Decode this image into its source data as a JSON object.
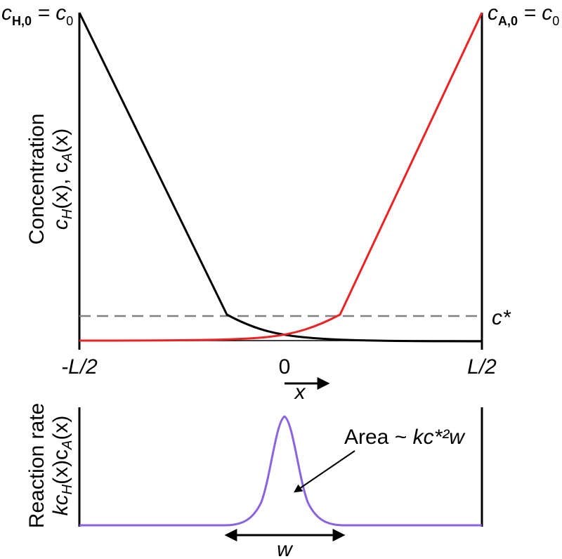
{
  "top_left_label": {
    "var": "c",
    "sub": "H,0",
    "rest": " = c",
    "sub2": "0"
  },
  "top_right_label": {
    "var": "c",
    "sub": "A,0",
    "rest": " = c",
    "sub2": "0"
  },
  "c_star_label": "c*",
  "y_axis_top": {
    "line1": "Concentration",
    "line2": {
      "a": "c",
      "a_sub": "H",
      "b": "(x), c",
      "b_sub": "A",
      "c": "(x)"
    }
  },
  "x_ticks": {
    "left": "-L/2",
    "mid": "0",
    "right": "L/2"
  },
  "x_arrow_label": "x",
  "y_axis_bottom": {
    "line1": "Reaction rate",
    "line2": {
      "a": "kc",
      "a_sub": "H",
      "b": "(x)c",
      "b_sub": "A",
      "c": "(x)"
    }
  },
  "area_label": {
    "prefix": "Area ~ ",
    "expr": "kc*²w"
  },
  "width_label": "w",
  "colors": {
    "h_curve": "#000000",
    "a_curve": "#ee2222",
    "c_star_line": "#808080",
    "rate_curve": "#8a63e0",
    "axis": "#000000"
  }
}
